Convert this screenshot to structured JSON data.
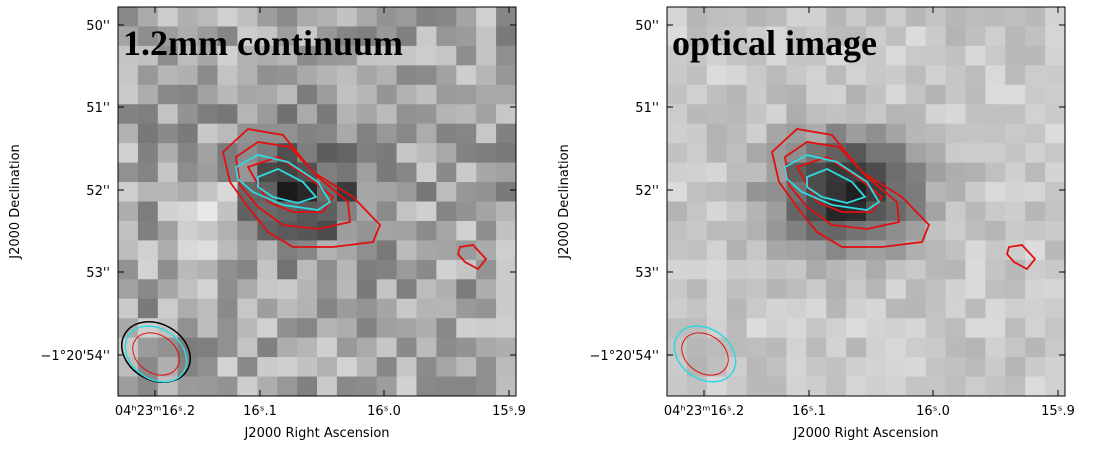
{
  "panels": [
    {
      "title": "1.2mm continuum",
      "x_label": "J2000 Right Ascension",
      "y_label": "J2000 Declination",
      "x_ticks": [
        "04ʰ23ᵐ16ˢ.2",
        "16ˢ.1",
        "16ˢ.0",
        "15ˢ.9"
      ],
      "y_ticks": [
        "50''",
        "51''",
        "52''",
        "53''",
        "−1°20'54''"
      ]
    },
    {
      "title": "optical image",
      "x_label": "J2000 Right Ascension",
      "y_label": "J2000 Declination",
      "x_ticks": [
        "04ʰ23ᵐ16ˢ.2",
        "16ˢ.1",
        "16ˢ.0",
        "15ˢ.9"
      ],
      "y_ticks": [
        "50''",
        "51''",
        "52''",
        "53''",
        "−1°20'54''"
      ]
    }
  ]
}
